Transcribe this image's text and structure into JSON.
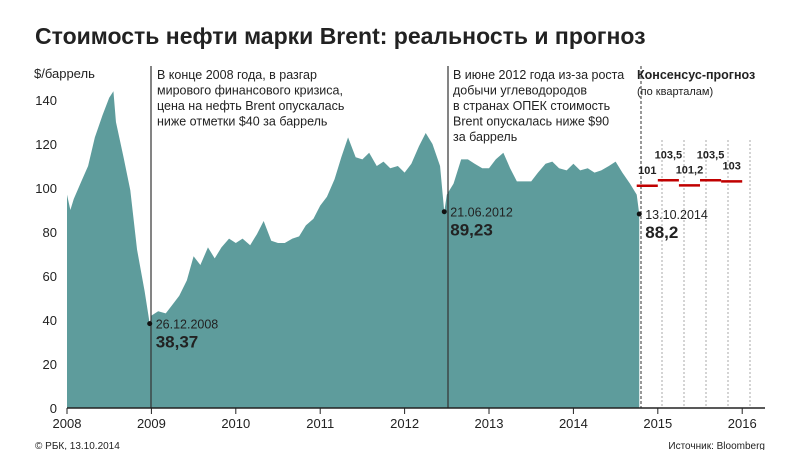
{
  "chart_data": {
    "type": "area",
    "title": "Стоимость нефти марки Brent: реальность и прогноз",
    "y_label": "$/баррель",
    "color": "#5e9c9c",
    "x": [
      2008.0,
      2008.04,
      2008.08,
      2008.17,
      2008.25,
      2008.33,
      2008.42,
      2008.5,
      2008.55,
      2008.58,
      2008.67,
      2008.75,
      2008.83,
      2008.92,
      2008.98,
      2009.0,
      2009.08,
      2009.17,
      2009.25,
      2009.33,
      2009.42,
      2009.5,
      2009.58,
      2009.67,
      2009.75,
      2009.83,
      2009.92,
      2010.0,
      2010.08,
      2010.17,
      2010.25,
      2010.33,
      2010.42,
      2010.5,
      2010.58,
      2010.67,
      2010.75,
      2010.83,
      2010.92,
      2011.0,
      2011.08,
      2011.17,
      2011.25,
      2011.33,
      2011.42,
      2011.5,
      2011.58,
      2011.67,
      2011.75,
      2011.83,
      2011.92,
      2012.0,
      2012.08,
      2012.17,
      2012.25,
      2012.33,
      2012.42,
      2012.47,
      2012.5,
      2012.58,
      2012.67,
      2012.75,
      2012.83,
      2012.92,
      2013.0,
      2013.08,
      2013.17,
      2013.25,
      2013.33,
      2013.42,
      2013.5,
      2013.58,
      2013.67,
      2013.75,
      2013.83,
      2013.92,
      2014.0,
      2014.08,
      2014.17,
      2014.25,
      2014.33,
      2014.42,
      2014.5,
      2014.58,
      2014.67,
      2014.75,
      2014.78
    ],
    "values": [
      97,
      90,
      95,
      103,
      110,
      123,
      133,
      141,
      144,
      130,
      114,
      99,
      72,
      53,
      38.37,
      42,
      44,
      43,
      47,
      51,
      58,
      69,
      65,
      73,
      68,
      73,
      77,
      75,
      77,
      74,
      79,
      85,
      76,
      75,
      75,
      77,
      78,
      83,
      86,
      92,
      96,
      104,
      114,
      123,
      114,
      113,
      116,
      110,
      112,
      109,
      110,
      107,
      111,
      119,
      125,
      120,
      110,
      89.23,
      97,
      102,
      113,
      113,
      111,
      109,
      109,
      113,
      116,
      109,
      103,
      103,
      103,
      107,
      111,
      112,
      109,
      108,
      111,
      108,
      109,
      107,
      108,
      110,
      112,
      107,
      102,
      97,
      88.2
    ],
    "xlim": [
      2008,
      2016.27
    ],
    "ylim": [
      0,
      145
    ],
    "xticks": [
      2008,
      2009,
      2010,
      2011,
      2012,
      2013,
      2014,
      2015,
      2016
    ],
    "yticks": [
      0,
      20,
      40,
      60,
      80,
      100,
      120,
      140
    ],
    "annotations": [
      {
        "x": 2008.98,
        "value": 38.37,
        "date": "26.12.2008",
        "label": "38,37"
      },
      {
        "x": 2012.47,
        "value": 89.23,
        "date": "21.06.2012",
        "label": "89,23"
      },
      {
        "x": 2014.78,
        "value": 88.2,
        "date": "13.10.2014",
        "label": "88,2"
      }
    ],
    "notes": [
      [
        "В конце 2008 года, в разгар",
        "мирового финансового кризиса,",
        "цена на нефть Brent опускалась",
        "ниже отметки $40 за баррель"
      ],
      [
        "В июне 2012 года из-за роста",
        "добычи углеводородов",
        "в странах ОПЕК стоимость",
        "Brent опускалась ниже $90",
        "за баррель"
      ]
    ],
    "forecast": {
      "title": "Консенсус-прогноз",
      "subtitle": "(по кварталам)",
      "color": "#c00000",
      "x_start": [
        2014.75,
        2015.0,
        2015.25,
        2015.5,
        2015.75
      ],
      "x_end": [
        2015.0,
        2015.25,
        2015.5,
        2015.75,
        2016.0
      ],
      "values": [
        101,
        103.5,
        101.2,
        103.5,
        103
      ],
      "value_labels": [
        "101",
        "103,5",
        "101,2",
        "103,5",
        "103"
      ]
    },
    "credit": "© РБК, 13.10.2014",
    "source": "Источник: Bloomberg"
  }
}
